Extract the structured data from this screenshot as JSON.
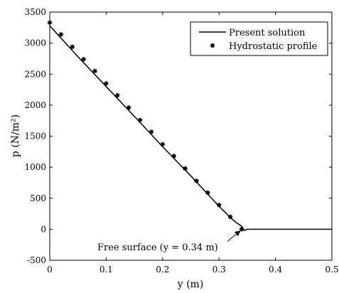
{
  "chart_data": {
    "type": "line",
    "xlabel": "y (m)",
    "ylabel": "p (N/m²)",
    "xlim": [
      0,
      0.5
    ],
    "ylim": [
      -500,
      3500
    ],
    "xticks": [
      0,
      0.1,
      0.2,
      0.3,
      0.4,
      0.5
    ],
    "xtick_labels": [
      "0",
      "0.1",
      "0.2",
      "0.3",
      "0.4",
      "0.5"
    ],
    "yticks": [
      -500,
      0,
      500,
      1000,
      1500,
      2000,
      2500,
      3000,
      3500
    ],
    "ytick_labels": [
      "-500",
      "0",
      "500",
      "1000",
      "1500",
      "2000",
      "2500",
      "3000",
      "3500"
    ],
    "grid": false,
    "legend_position": "top-right",
    "series": [
      {
        "name": "Present solution",
        "style": "solid-line",
        "color": "#000000",
        "x": [
          0,
          0.05,
          0.1,
          0.15,
          0.2,
          0.25,
          0.3,
          0.32,
          0.33,
          0.34,
          0.345,
          0.35,
          0.4,
          0.45,
          0.5
        ],
        "y": [
          3280,
          2780,
          2300,
          1820,
          1330,
          860,
          370,
          190,
          110,
          50,
          -20,
          0,
          0,
          0,
          0
        ]
      },
      {
        "name": "Hydrostatic profile",
        "style": "asterisk-markers",
        "color": "#000000",
        "x": [
          0,
          0.02,
          0.04,
          0.06,
          0.08,
          0.1,
          0.12,
          0.14,
          0.16,
          0.18,
          0.2,
          0.22,
          0.24,
          0.26,
          0.28,
          0.3,
          0.32,
          0.34
        ],
        "y": [
          3330,
          3140,
          2940,
          2740,
          2550,
          2350,
          2160,
          1960,
          1760,
          1570,
          1370,
          1180,
          980,
          780,
          590,
          390,
          200,
          0
        ]
      }
    ],
    "annotation": {
      "text": "Free surface (y = 0.34 m)",
      "x": 0.34,
      "y": 0
    }
  }
}
